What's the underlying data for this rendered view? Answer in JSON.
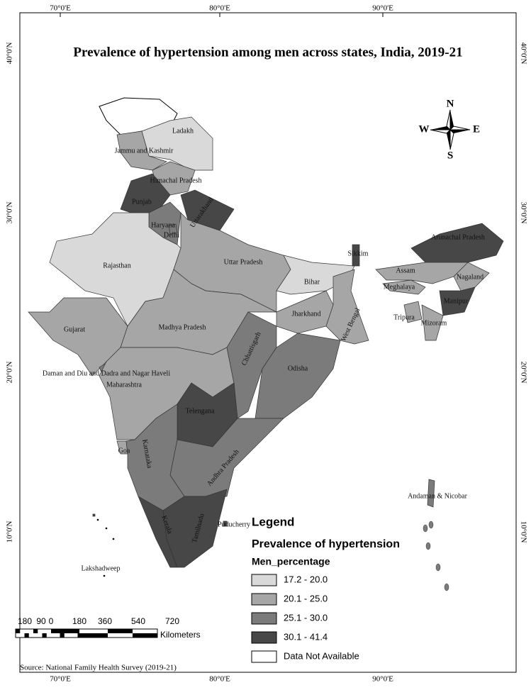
{
  "title": "Prevalence of hypertension among men across states, India, 2019-21",
  "graticule": {
    "longitudes": [
      "70°0'E",
      "80°0'E",
      "90°0'E"
    ],
    "latitudes": [
      "40°0'N",
      "30°0'N",
      "20°0'N",
      "10°0'N"
    ]
  },
  "compass": {
    "north": "N",
    "south": "S",
    "east": "E",
    "west": "W"
  },
  "states": [
    {
      "name": "Ladakh",
      "color": "#d9d9d9"
    },
    {
      "name": "Jammu and Kashmir",
      "color": "#a6a6a6"
    },
    {
      "name": "Himachal Pradesh",
      "color": "#a6a6a6"
    },
    {
      "name": "Punjab",
      "color": "#474747"
    },
    {
      "name": "Uttarakhand",
      "color": "#474747"
    },
    {
      "name": "Haryana",
      "color": "#7b7b7b"
    },
    {
      "name": "Delhi",
      "color": "#7b7b7b"
    },
    {
      "name": "Rajasthan",
      "color": "#d9d9d9"
    },
    {
      "name": "Uttar Pradesh",
      "color": "#a6a6a6"
    },
    {
      "name": "Bihar",
      "color": "#d9d9d9"
    },
    {
      "name": "Madhya Pradesh",
      "color": "#a6a6a6"
    },
    {
      "name": "Gujarat",
      "color": "#a6a6a6"
    },
    {
      "name": "Daman and Diu and Dadra and Nagar Haveli",
      "color": "#7b7b7b"
    },
    {
      "name": "Maharashtra",
      "color": "#a6a6a6"
    },
    {
      "name": "Chhattisgarh",
      "color": "#7b7b7b"
    },
    {
      "name": "Jharkhand",
      "color": "#a6a6a6"
    },
    {
      "name": "West Bengal",
      "color": "#a6a6a6"
    },
    {
      "name": "Odisha",
      "color": "#7b7b7b"
    },
    {
      "name": "Telengana",
      "color": "#474747"
    },
    {
      "name": "Andhra Pradesh",
      "color": "#7b7b7b"
    },
    {
      "name": "Goa",
      "color": "#a6a6a6"
    },
    {
      "name": "Karnataka",
      "color": "#7b7b7b"
    },
    {
      "name": "Kerala",
      "color": "#474747"
    },
    {
      "name": "Tamilnadu",
      "color": "#474747"
    },
    {
      "name": "Puducherry",
      "color": "#474747"
    },
    {
      "name": "Sikkim",
      "color": "#474747"
    },
    {
      "name": "Arunachal Pradesh",
      "color": "#474747"
    },
    {
      "name": "Assam",
      "color": "#a6a6a6"
    },
    {
      "name": "Nagaland",
      "color": "#a6a6a6"
    },
    {
      "name": "Meghalaya",
      "color": "#a6a6a6"
    },
    {
      "name": "Manipur",
      "color": "#474747"
    },
    {
      "name": "Tripura",
      "color": "#a6a6a6"
    },
    {
      "name": "Mizoram",
      "color": "#a6a6a6"
    },
    {
      "name": "Andaman & Nicobar",
      "color": "#7b7b7b"
    },
    {
      "name": "Lakshadweep",
      "color": "#474747"
    }
  ],
  "legend": {
    "title": "Legend",
    "subtitle": "Prevalence of hypertension",
    "field": "Men_percentage",
    "classes": [
      {
        "label": "17.2 - 20.0",
        "color": "#d9d9d9"
      },
      {
        "label": "20.1 - 25.0",
        "color": "#a6a6a6"
      },
      {
        "label": "25.1 - 30.0",
        "color": "#7b7b7b"
      },
      {
        "label": "30.1 - 41.4",
        "color": "#474747"
      },
      {
        "label": "Data Not Available",
        "color": "#ffffff"
      }
    ]
  },
  "scale_bar": {
    "labels": [
      "180",
      "90",
      "0",
      "180",
      "360",
      "540",
      "720"
    ],
    "unit": "Kilometers"
  },
  "source": "Source: National Family Health Survey (2019-21)"
}
